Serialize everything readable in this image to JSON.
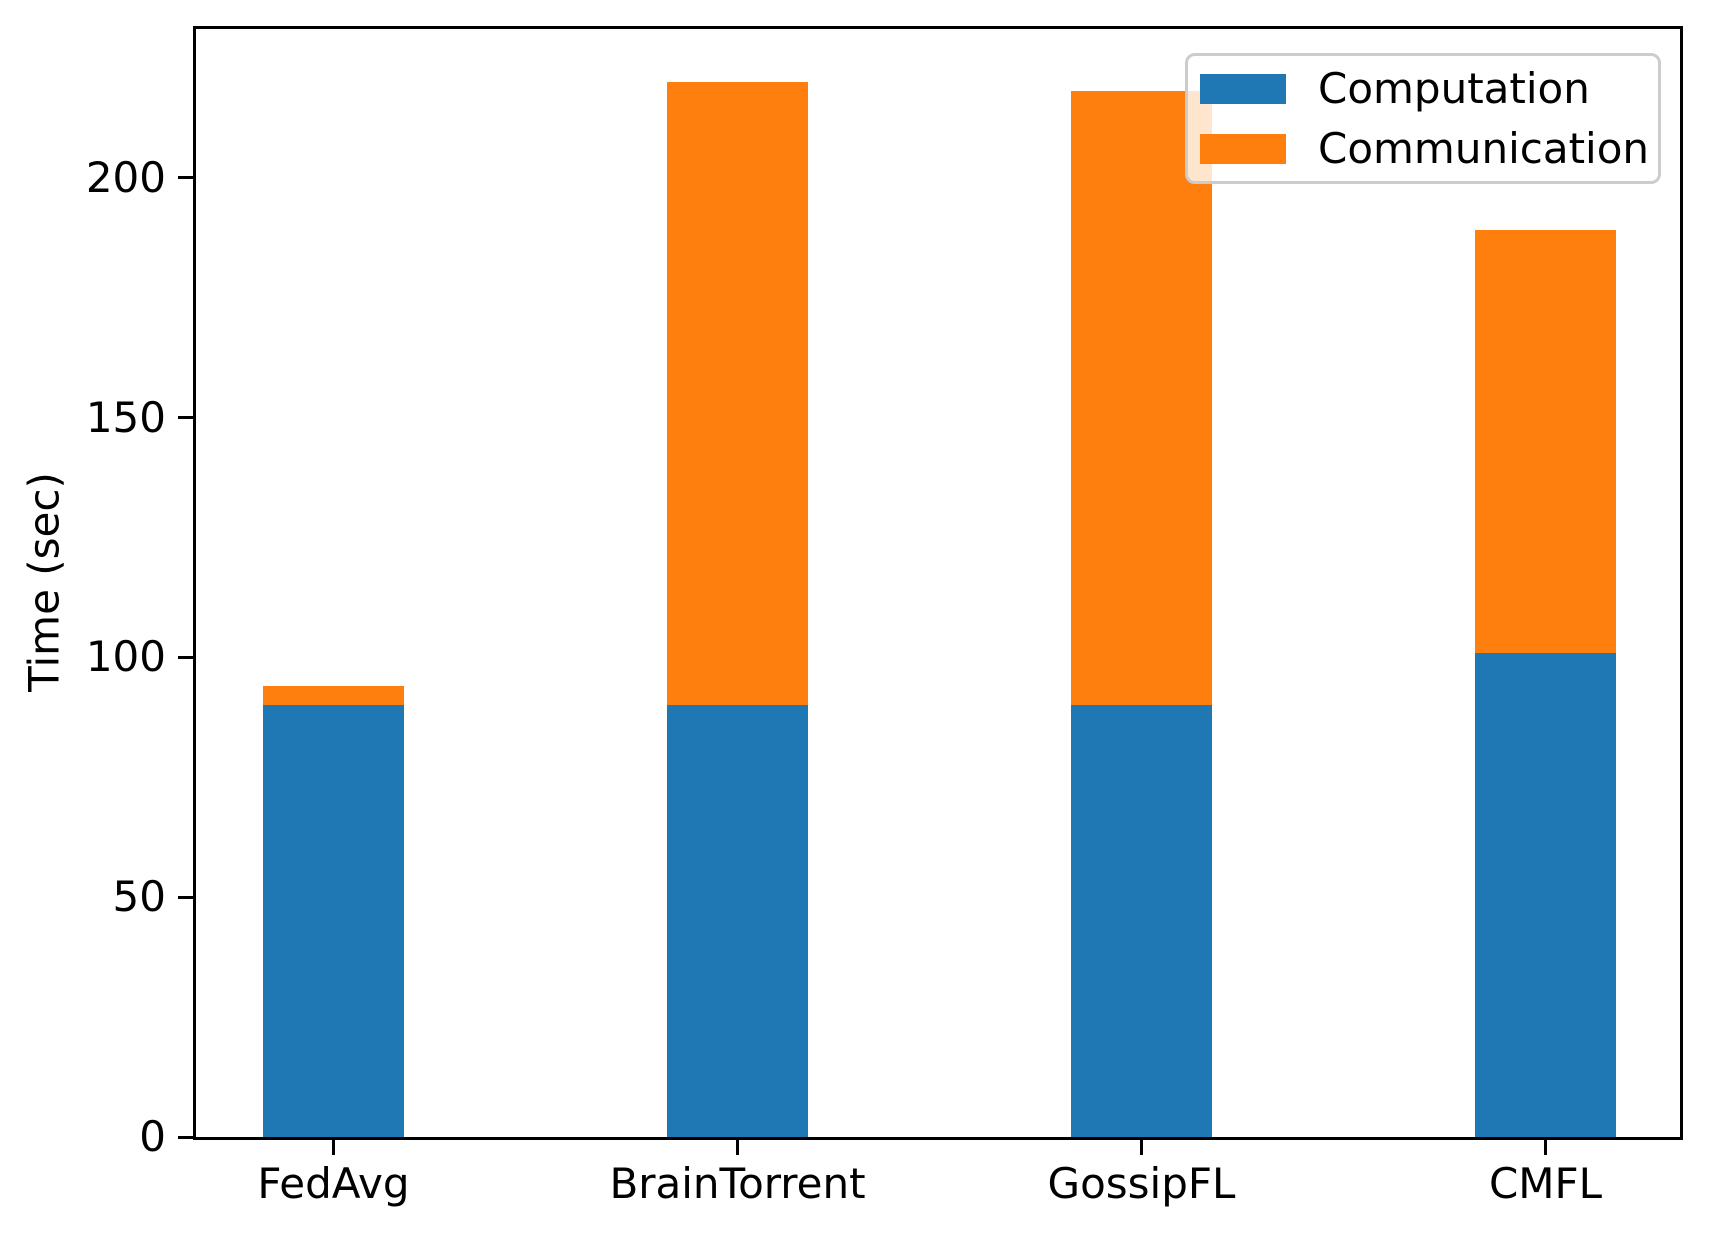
{
  "chart_data": {
    "type": "bar",
    "stacked": true,
    "title": "",
    "xlabel": "",
    "ylabel": "Time (sec)",
    "categories": [
      "FedAvg",
      "BrainTorrent",
      "GossipFL",
      "CMFL"
    ],
    "series": [
      {
        "name": "Computation",
        "color": "#1f77b4",
        "values": [
          90,
          90,
          90,
          101
        ]
      },
      {
        "name": "Communication",
        "color": "#ff7f0e",
        "values": [
          4,
          130,
          128,
          88
        ]
      }
    ],
    "totals": [
      94,
      220,
      218,
      189
    ],
    "ylim": [
      0,
      231
    ],
    "yticks": [
      0,
      50,
      100,
      150,
      200
    ],
    "grid": false,
    "legend_position": "upper right",
    "colors": {
      "computation": "#1f77b4",
      "communication": "#ff7f0e",
      "axis": "#000000",
      "legend_border": "#cccccc",
      "background": "#ffffff"
    }
  }
}
